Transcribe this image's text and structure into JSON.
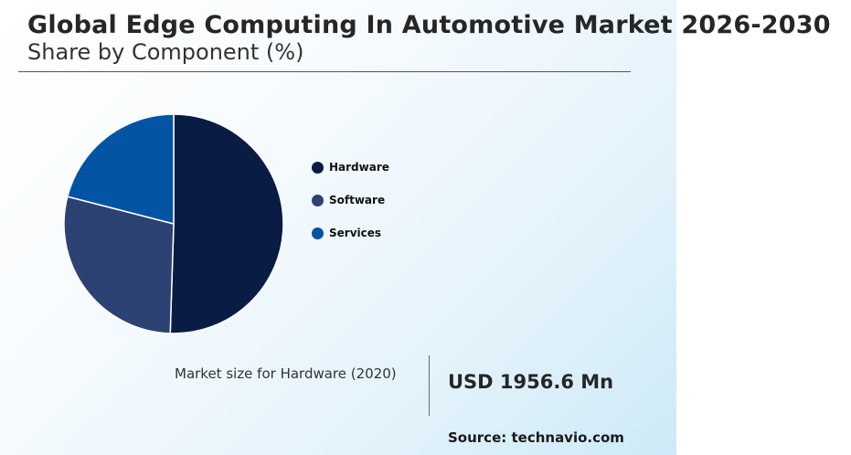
{
  "header": {
    "title": "Global Edge Computing In Automotive Market 2026-2030",
    "subtitle": "Share by Component (%)"
  },
  "chart_data": {
    "type": "pie",
    "title": "Global Edge Computing In Automotive Market 2026-2030",
    "subtitle": "Share by Component (%)",
    "categories": [
      "Hardware",
      "Software",
      "Services"
    ],
    "values": [
      50.5,
      28.5,
      21.0
    ],
    "colors": [
      "#081c44",
      "#2b4272",
      "#0354a4"
    ],
    "start_angle_deg": 0,
    "direction": "clockwise",
    "legend_position": "right"
  },
  "legend": {
    "items": [
      {
        "label": "Hardware",
        "color": "#081c44"
      },
      {
        "label": "Software",
        "color": "#2b4272"
      },
      {
        "label": "Services",
        "color": "#0354a4"
      }
    ]
  },
  "market_size": {
    "label": "Market size for Hardware (2020)",
    "value": "USD 1956.6 Mn"
  },
  "source": "Source: technavio.com"
}
